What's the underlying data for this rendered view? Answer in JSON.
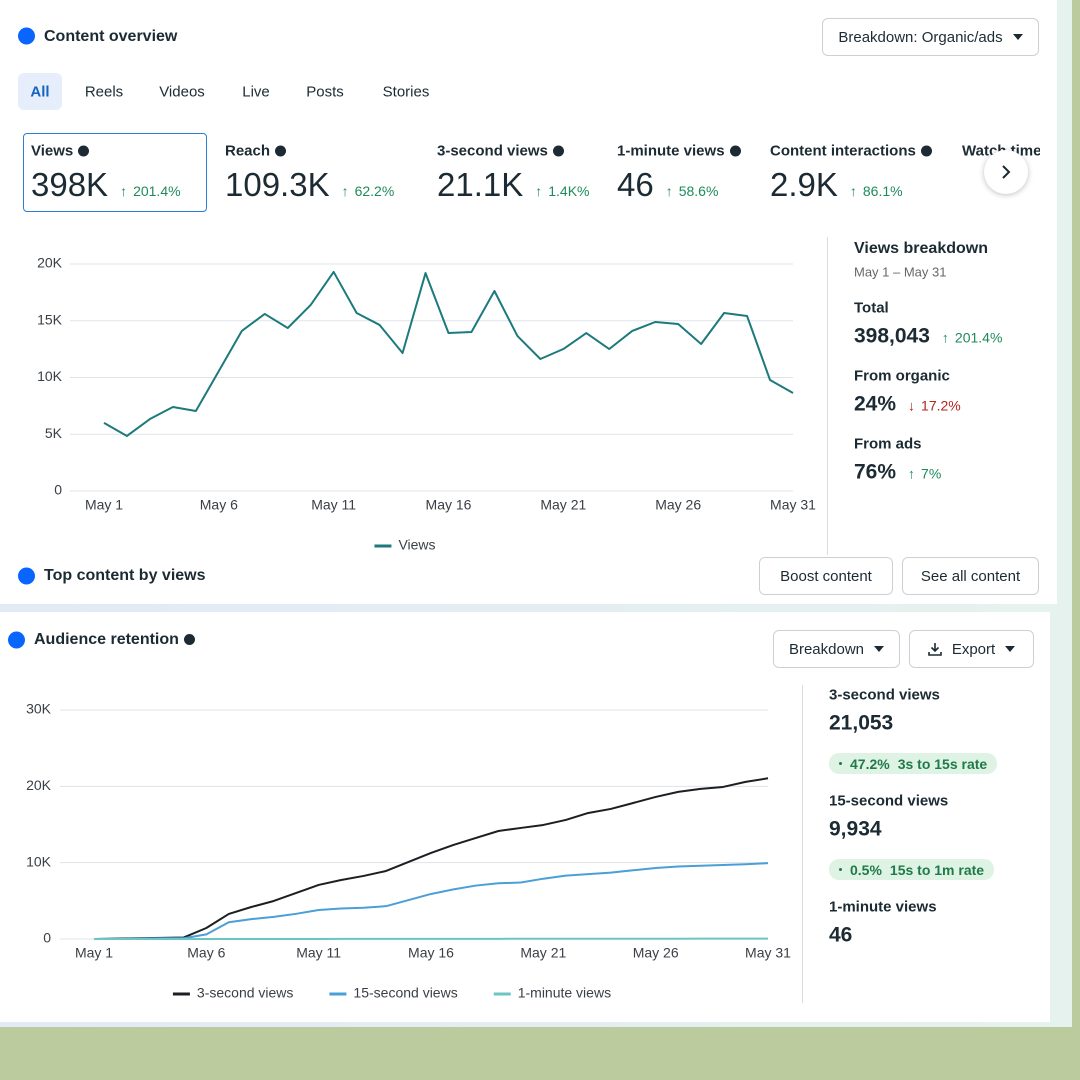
{
  "content_overview": {
    "title": "Content overview",
    "breakdown_button": "Breakdown: Organic/ads",
    "tabs": [
      "All",
      "Reels",
      "Videos",
      "Live",
      "Posts",
      "Stories"
    ],
    "metrics": [
      {
        "label": "Views",
        "value": "398K",
        "change": "201.4%"
      },
      {
        "label": "Reach",
        "value": "109.3K",
        "change": "62.2%"
      },
      {
        "label": "3-second views",
        "value": "21.1K",
        "change": "1.4K%"
      },
      {
        "label": "1-minute views",
        "value": "46",
        "change": "58.6%"
      },
      {
        "label": "Content interactions",
        "value": "2.9K",
        "change": "86.1%"
      },
      {
        "label": "Watch time"
      }
    ],
    "breakdown": {
      "title": "Views breakdown",
      "date_range": "May 1 – May 31",
      "items": [
        {
          "label": "Total",
          "value": "398,043",
          "change": "201.4%"
        },
        {
          "label": "From organic",
          "value": "24%",
          "change": "17.2%",
          "trend": "down"
        },
        {
          "label": "From ads",
          "value": "76%",
          "change": "7%"
        }
      ]
    }
  },
  "top_content": {
    "title": "Top content by views",
    "buttons": [
      "Boost content",
      "See all content"
    ]
  },
  "audience_retention": {
    "title": "Audience retention",
    "buttons": [
      "Breakdown",
      "Export"
    ],
    "summary": [
      {
        "label": "3-second views",
        "value": "21,053",
        "rate": "47.2%",
        "rate_label": "3s to 15s rate"
      },
      {
        "label": "15-second views",
        "value": "9,934",
        "rate": "0.5%",
        "rate_label": "15s to 1m rate"
      },
      {
        "label": "1-minute views",
        "value": "46"
      }
    ]
  },
  "chart_data": [
    {
      "type": "line",
      "grid": true,
      "categories": [
        "May 1",
        null,
        null,
        null,
        null,
        "May 6",
        null,
        null,
        null,
        null,
        "May 11",
        null,
        null,
        null,
        null,
        "May 16",
        null,
        null,
        null,
        null,
        "May 21",
        null,
        null,
        null,
        null,
        "May 26",
        null,
        null,
        null,
        null,
        "May 31"
      ],
      "ylim": [
        0,
        20000
      ],
      "yticks": [
        0,
        {
          "value": 5000,
          "label": "5K"
        },
        {
          "value": 10000,
          "label": "10K"
        },
        {
          "value": 15000,
          "label": "15K"
        },
        {
          "value": 20000,
          "label": "20K"
        }
      ],
      "series": [
        {
          "name": "Views",
          "color": "#1d7a7c",
          "values": [
            6000,
            4850,
            6340,
            7400,
            7050,
            10570,
            14100,
            15600,
            14360,
            16390,
            19300,
            15680,
            14630,
            12160,
            19200,
            13920,
            14010,
            17620,
            13660,
            11630,
            12510,
            13920,
            12510,
            14100,
            14890,
            14710,
            12950,
            15680,
            15420,
            9780,
            8630
          ]
        }
      ]
    },
    {
      "type": "line",
      "grid": true,
      "categories": [
        "May 1",
        null,
        null,
        null,
        null,
        "May 6",
        null,
        null,
        null,
        null,
        "May 11",
        null,
        null,
        null,
        null,
        "May 16",
        null,
        null,
        null,
        null,
        "May 21",
        null,
        null,
        null,
        null,
        "May 26",
        null,
        null,
        null,
        null,
        "May 31"
      ],
      "ylim": [
        0,
        30000
      ],
      "yticks": [
        0,
        {
          "value": 10000,
          "label": "10K"
        },
        {
          "value": 20000,
          "label": "20K"
        },
        {
          "value": 30000,
          "label": "30K"
        }
      ],
      "series": [
        {
          "name": "3-second views",
          "color": "#1c1e21",
          "values": [
            0,
            50,
            100,
            150,
            200,
            1440,
            3280,
            4190,
            4980,
            6030,
            7080,
            7730,
            8260,
            8910,
            10090,
            11270,
            12320,
            13240,
            14150,
            14550,
            14940,
            15600,
            16510,
            17040,
            17820,
            18610,
            19270,
            19660,
            19920,
            20580,
            21053
          ]
        },
        {
          "name": "15-second views",
          "color": "#4a9fd6",
          "values": [
            0,
            0,
            50,
            100,
            100,
            600,
            2200,
            2600,
            2900,
            3300,
            3800,
            4000,
            4100,
            4300,
            5100,
            5900,
            6500,
            7000,
            7300,
            7400,
            7900,
            8300,
            8500,
            8700,
            9000,
            9300,
            9500,
            9600,
            9700,
            9800,
            9934
          ]
        },
        {
          "name": "1-minute views",
          "color": "#6cc5c5",
          "values": [
            0,
            0,
            0,
            0,
            0,
            1,
            2,
            3,
            4,
            6,
            8,
            10,
            12,
            14,
            16,
            18,
            20,
            22,
            24,
            26,
            28,
            30,
            32,
            34,
            36,
            38,
            40,
            41,
            43,
            45,
            46
          ]
        }
      ]
    }
  ]
}
